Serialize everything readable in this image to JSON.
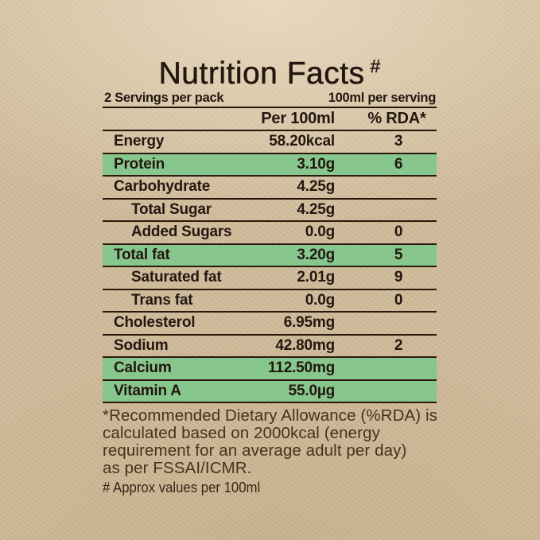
{
  "title": {
    "text": "Nutrition Facts",
    "superscript": "#"
  },
  "serving_info": {
    "left": "2 Servings per pack",
    "right": "100ml per serving"
  },
  "table": {
    "header": {
      "amount_col": "Per 100ml",
      "rda_col": "% RDA*"
    },
    "rows": [
      {
        "label": "Energy",
        "value": "58.20kcal",
        "rda": "3",
        "indent": false,
        "highlight": false
      },
      {
        "label": "Protein",
        "value": "3.10g",
        "rda": "6",
        "indent": false,
        "highlight": true
      },
      {
        "label": "Carbohydrate",
        "value": "4.25g",
        "rda": "",
        "indent": false,
        "highlight": false
      },
      {
        "label": "Total Sugar",
        "value": "4.25g",
        "rda": "",
        "indent": true,
        "highlight": false
      },
      {
        "label": "Added Sugars",
        "value": "0.0g",
        "rda": "0",
        "indent": true,
        "highlight": false
      },
      {
        "label": "Total fat",
        "value": "3.20g",
        "rda": "5",
        "indent": false,
        "highlight": true
      },
      {
        "label": "Saturated fat",
        "value": "2.01g",
        "rda": "9",
        "indent": true,
        "highlight": false
      },
      {
        "label": "Trans fat",
        "value": "0.0g",
        "rda": "0",
        "indent": true,
        "highlight": false
      },
      {
        "label": "Cholesterol",
        "value": "6.95mg",
        "rda": "",
        "indent": false,
        "highlight": false
      },
      {
        "label": "Sodium",
        "value": "42.80mg",
        "rda": "2",
        "indent": false,
        "highlight": false
      },
      {
        "label": "Calcium",
        "value": "112.50mg",
        "rda": "",
        "indent": false,
        "highlight": true
      },
      {
        "label": "Vitamin A",
        "value": "55.0µg",
        "rda": "",
        "indent": false,
        "highlight": true
      }
    ]
  },
  "footnotes": {
    "rda_note_lines": [
      "*Recommended Dietary Allowance (%RDA) is",
      "calculated based on 2000kcal (energy",
      "requirement for an average adult per day)",
      "as per FSSAI/ICMR."
    ],
    "hash_note": "# Approx values per 100ml"
  },
  "colors": {
    "paper": "#d0bc9b",
    "highlight_green": "#87c78d",
    "text_dark": "#231710",
    "footnote_brown": "#49301e",
    "rule": "#2c190d"
  }
}
